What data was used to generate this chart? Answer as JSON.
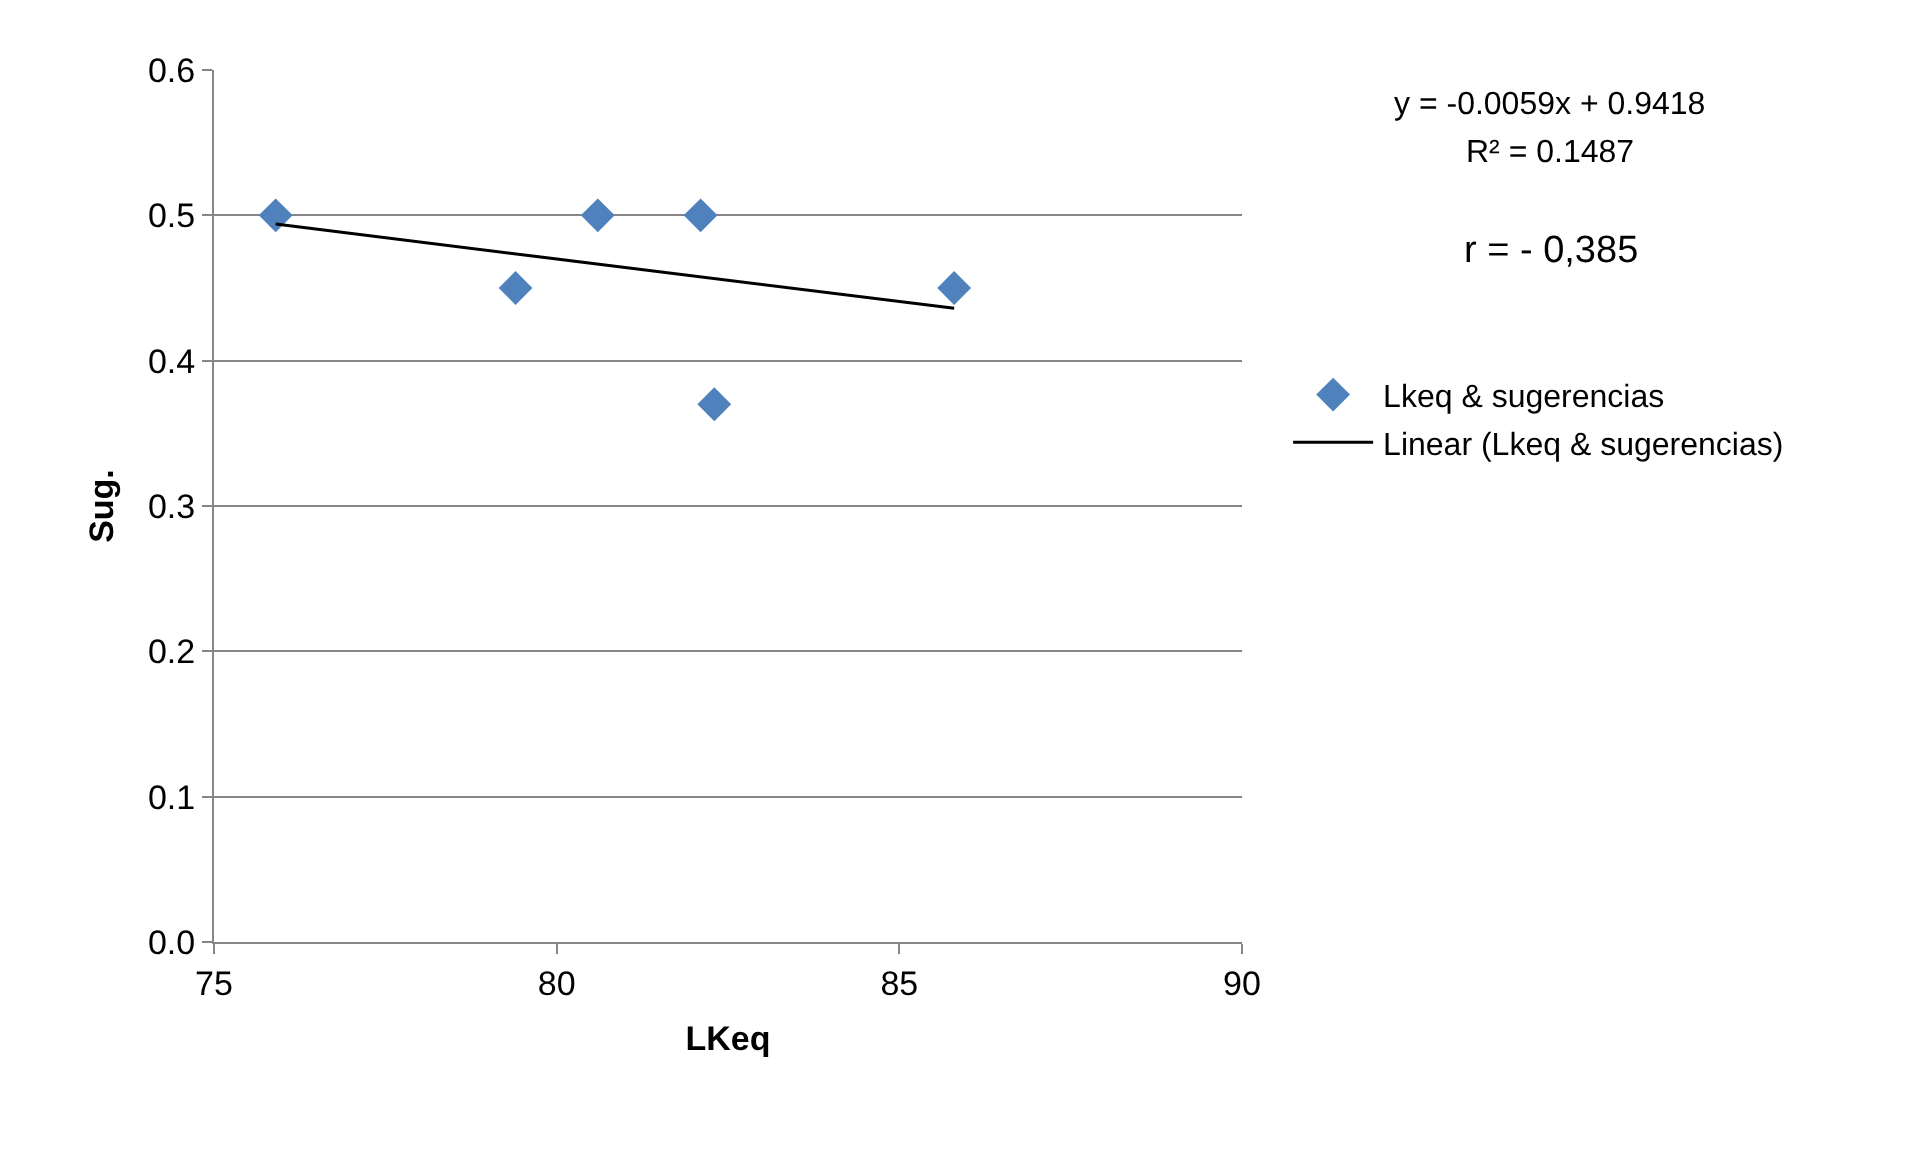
{
  "chart_data": {
    "type": "scatter",
    "xlabel": "LKeq",
    "ylabel": "Sug.",
    "xlim": [
      75,
      90
    ],
    "xticks": [
      75,
      80,
      85,
      90
    ],
    "ylim": [
      0,
      0.6
    ],
    "yticks": [
      {
        "value": 0,
        "label": "0.0"
      },
      0.1,
      0.2,
      0.3,
      0.4,
      0.5,
      0.6
    ],
    "grid": "y",
    "legend": "right",
    "annotations": [
      "y = -0.0059x + 0.9418",
      "R² = 0.1487",
      "r = - 0,385"
    ],
    "series": [
      {
        "name": "Lkeq & sugerencias",
        "marker": "diamond",
        "color": "#4f81bd",
        "x": [
          75.9,
          79.4,
          80.6,
          82.1,
          82.3,
          85.8
        ],
        "values": [
          0.5,
          0.45,
          0.5,
          0.5,
          0.37,
          0.45
        ]
      },
      {
        "name": "Linear (Lkeq & sugerencias)",
        "type": "line",
        "color": "#000000",
        "line_style": "solid",
        "x": [
          75.9,
          85.8
        ],
        "values": [
          0.494,
          0.436
        ]
      }
    ]
  }
}
